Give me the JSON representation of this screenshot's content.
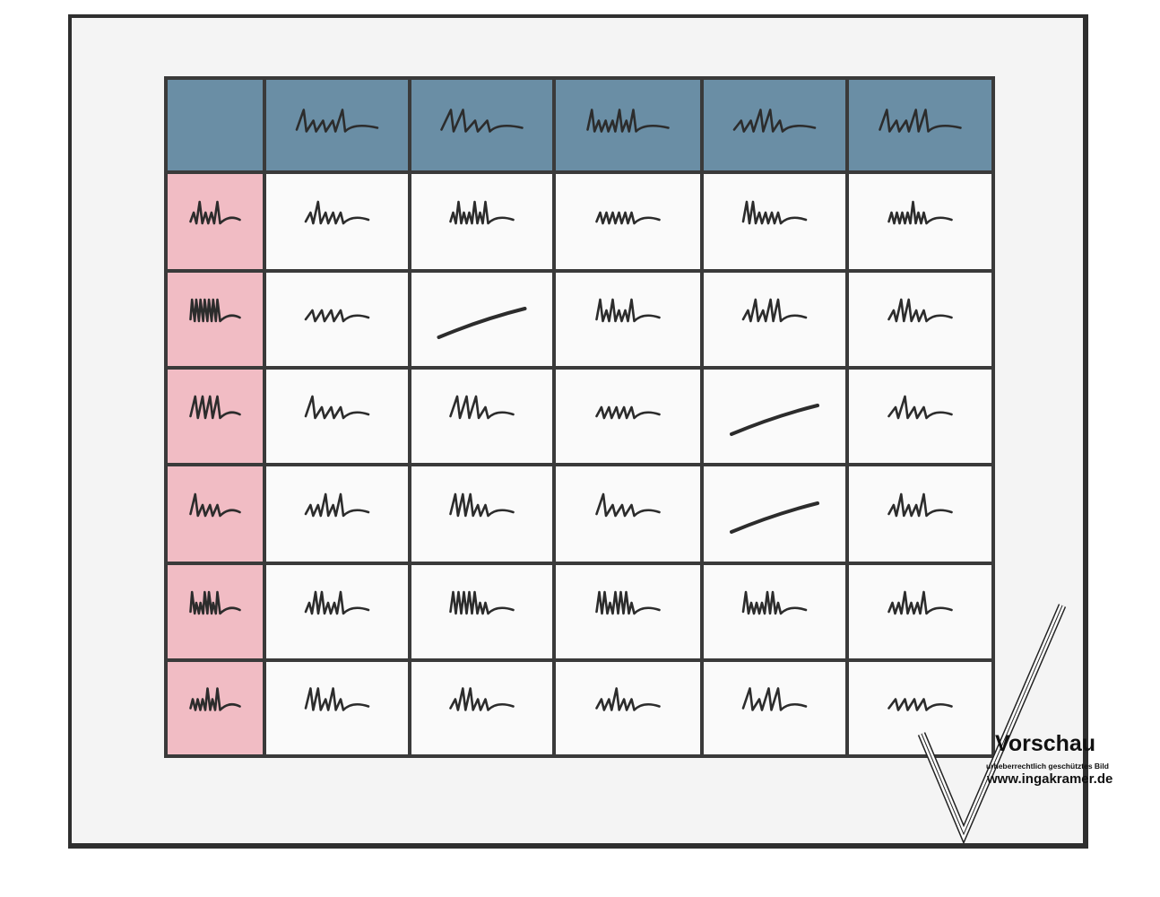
{
  "colors": {
    "header": "#6a8ea5",
    "row_header": "#f1bcc4",
    "cell": "#fafafa",
    "ink": "#2c2c2c",
    "grid": "#3a3a3a"
  },
  "watermark": {
    "title": "Vorschau",
    "subtitle": "urheberrechtlich geschütztes Bild",
    "url": "www.ingakramer.de"
  }
}
